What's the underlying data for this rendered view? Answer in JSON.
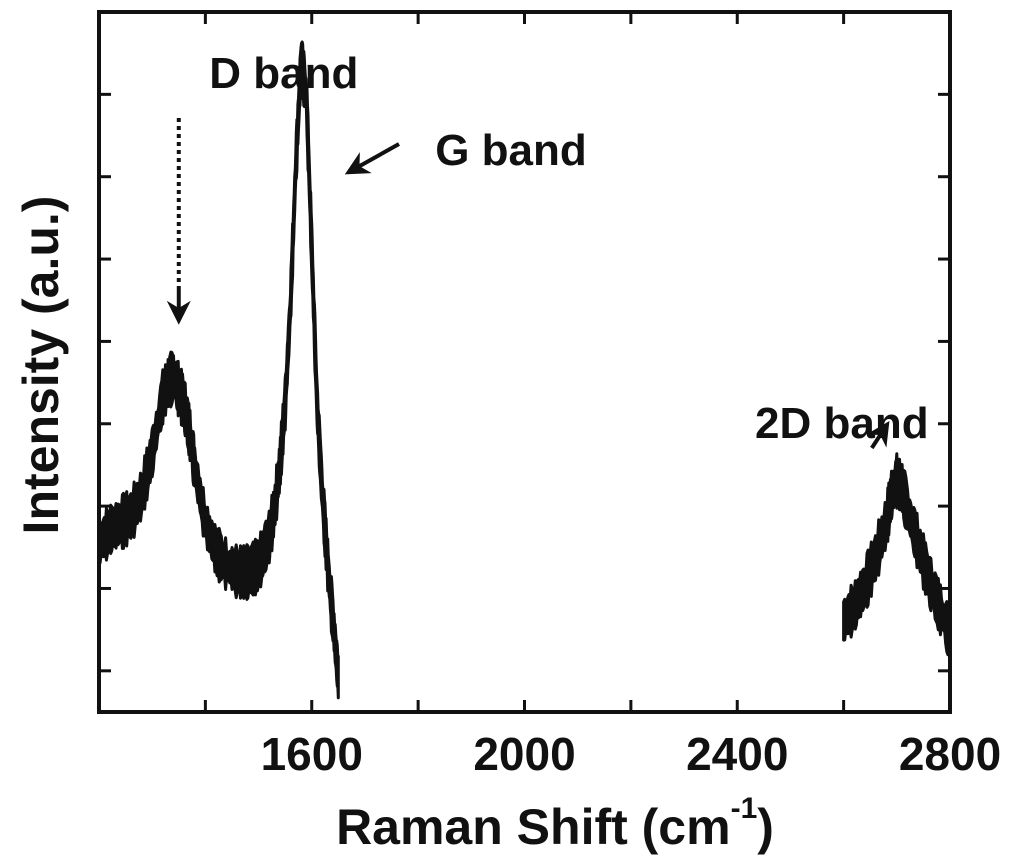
{
  "chart_data": {
    "type": "line",
    "title": "",
    "xlabel": "Raman Shift (cm",
    "xlabel_superscript": "-1",
    "xlabel_suffix": ")",
    "ylabel": "Intensity (a.u.)",
    "xlim": [
      1200,
      2800
    ],
    "ylim": [
      0,
      100
    ],
    "x_ticks": [
      1600,
      2000,
      2400,
      2800
    ],
    "x_minor_ticks": [
      1200,
      1400,
      1800,
      2200,
      2600
    ],
    "y_ticks_labeled": false,
    "grid": false,
    "legend": "none",
    "line_color": "#111111",
    "series": [
      {
        "segments": [
          {
            "x": [
              1200,
              1220,
              1240,
              1260,
              1280,
              1300,
              1320,
              1330,
              1340,
              1350,
              1360,
              1370,
              1380,
              1400,
              1420,
              1440,
              1460,
              1480,
              1500,
              1520,
              1530,
              1540,
              1550,
              1560,
              1570,
              1580,
              1590,
              1600,
              1610,
              1620,
              1630,
              1640,
              1650
            ],
            "y": [
              24,
              26,
              27,
              28,
              31,
              37,
              45,
              47,
              48,
              46,
              44,
              40,
              35,
              27,
              23,
              21,
              20,
              20,
              21,
              25,
              29,
              35,
              44,
              58,
              78,
              93,
              88,
              66,
              44,
              31,
              21,
              13,
              5
            ]
          },
          {
            "x": [
              2600,
              2620,
              2640,
              2660,
              2680,
              2690,
              2700,
              2710,
              2720,
              2740,
              2760,
              2780,
              2800
            ],
            "y": [
              13,
              15,
              18,
              22,
              27,
              31,
              33,
              32,
              29,
              24,
              19,
              15,
              11
            ]
          }
        ]
      }
    ],
    "annotations": [
      {
        "text": "D band",
        "x": 1350,
        "y": 48
      },
      {
        "text": "G band",
        "x": 1655,
        "y": 88
      },
      {
        "text": "2D band",
        "x": 2700,
        "y": 33
      }
    ]
  }
}
